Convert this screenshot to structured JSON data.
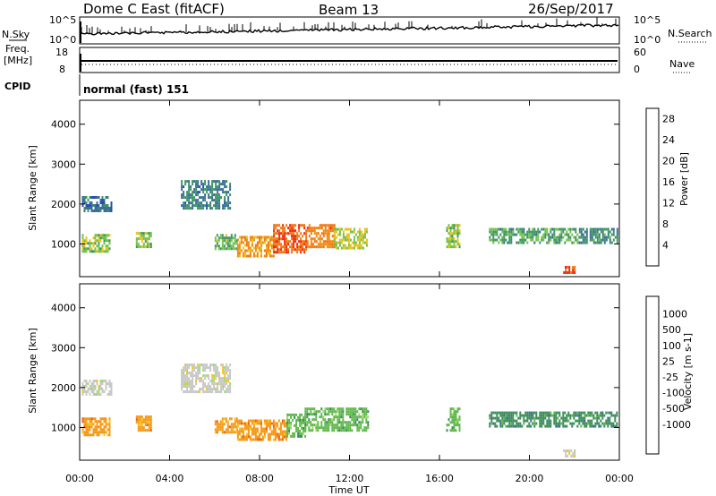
{
  "header": {
    "station": "Dome C East (fitACF)",
    "beam": "Beam 13",
    "date": "26/Sep/2017"
  },
  "params": {
    "nsky_label": "N.Sky",
    "nsearch_label": "N.Search",
    "freq_label_1": "Freq.",
    "freq_label_2": "[MHz]",
    "nave_label": "Nave",
    "cpid_label": "CPID",
    "nsky_ticks": [
      "10^5",
      "10^0"
    ],
    "nsearch_ticks": [
      "10^5",
      "10^0"
    ],
    "freq_ticks": [
      "18",
      "8"
    ],
    "nave_ticks": [
      "60",
      "0"
    ]
  },
  "cpid": {
    "mode": "normal (fast) 151"
  },
  "xaxis": {
    "label": "Time UT",
    "ticks": [
      "00:00",
      "04:00",
      "08:00",
      "12:00",
      "16:00",
      "20:00",
      "00:00"
    ]
  },
  "colors": {
    "power": [
      "#1b22e6",
      "#2b4eb3",
      "#3b6f96",
      "#3f9466",
      "#73c24a",
      "#e8c31c",
      "#f08c12",
      "#f07812",
      "#ef2b10",
      "#e00a0a"
    ],
    "velocity": [
      "#e60a0a",
      "#f06018",
      "#f59a18",
      "#f5c41a",
      "#c8c8c8",
      "#9fdc6c",
      "#62b84e",
      "#3d8c5a",
      "#3b64a8",
      "#1b2ed0"
    ],
    "trace": "#000000"
  },
  "chart_data": [
    {
      "type": "heatmap",
      "name": "power-panel",
      "ylabel": "Slant Range [km]",
      "xlim": [
        0,
        24
      ],
      "ylim": [
        180,
        4600
      ],
      "yticks": [
        "1000",
        "2000",
        "3000",
        "4000"
      ],
      "colorbar": {
        "label": "Power [dB]",
        "range": [
          0,
          30
        ],
        "ticks": [
          "4",
          "8",
          "12",
          "16",
          "20",
          "24",
          "28"
        ]
      },
      "regions": [
        {
          "t": [
            0.1,
            1.4
          ],
          "r": [
            1800,
            2200
          ],
          "v": 7
        },
        {
          "t": [
            0.1,
            1.3
          ],
          "r": [
            800,
            1250
          ],
          "v": 14
        },
        {
          "t": [
            2.5,
            3.2
          ],
          "r": [
            900,
            1300
          ],
          "v": 13
        },
        {
          "t": [
            4.5,
            6.7
          ],
          "r": [
            1900,
            2600
          ],
          "v": 8
        },
        {
          "t": [
            6.0,
            7.0
          ],
          "r": [
            900,
            1250
          ],
          "v": 12
        },
        {
          "t": [
            7.0,
            8.6
          ],
          "r": [
            700,
            1200
          ],
          "v": 20
        },
        {
          "t": [
            8.6,
            10.1
          ],
          "r": [
            800,
            1500
          ],
          "v": 25
        },
        {
          "t": [
            10.1,
            11.3
          ],
          "r": [
            900,
            1500
          ],
          "v": 22
        },
        {
          "t": [
            11.3,
            12.8
          ],
          "r": [
            900,
            1400
          ],
          "v": 15
        },
        {
          "t": [
            16.3,
            16.9
          ],
          "r": [
            900,
            1500
          ],
          "v": 14
        },
        {
          "t": [
            18.2,
            22.2
          ],
          "r": [
            1050,
            1400
          ],
          "v": 11
        },
        {
          "t": [
            22.2,
            23.9
          ],
          "r": [
            1050,
            1400
          ],
          "v": 9
        },
        {
          "t": [
            21.5,
            22.0
          ],
          "r": [
            250,
            450
          ],
          "v": 26
        }
      ]
    },
    {
      "type": "heatmap",
      "name": "velocity-panel",
      "ylabel": "Slant Range [km]",
      "xlim": [
        0,
        24
      ],
      "ylim": [
        180,
        4600
      ],
      "yticks": [
        "1000",
        "2000",
        "3000",
        "4000"
      ],
      "colorbar": {
        "label": "Velocity [m s-1]",
        "range": [
          -1000,
          1000
        ],
        "ticks": [
          "1000",
          "500",
          "100",
          "25",
          "-25",
          "-100",
          "-500",
          "-1000"
        ]
      },
      "regions": [
        {
          "t": [
            0.1,
            1.4
          ],
          "r": [
            1800,
            2200
          ],
          "v": 0
        },
        {
          "t": [
            0.1,
            1.3
          ],
          "r": [
            800,
            1250
          ],
          "v": -120
        },
        {
          "t": [
            2.5,
            3.2
          ],
          "r": [
            900,
            1300
          ],
          "v": -100
        },
        {
          "t": [
            4.5,
            6.7
          ],
          "r": [
            1900,
            2600
          ],
          "v": 0
        },
        {
          "t": [
            6.0,
            7.0
          ],
          "r": [
            900,
            1250
          ],
          "v": -150
        },
        {
          "t": [
            7.0,
            9.2
          ],
          "r": [
            700,
            1200
          ],
          "v": -150
        },
        {
          "t": [
            9.2,
            10.0
          ],
          "r": [
            800,
            1350
          ],
          "v": 60
        },
        {
          "t": [
            10.0,
            12.8
          ],
          "r": [
            900,
            1500
          ],
          "v": 80
        },
        {
          "t": [
            16.3,
            16.9
          ],
          "r": [
            900,
            1500
          ],
          "v": 60
        },
        {
          "t": [
            18.2,
            23.9
          ],
          "r": [
            1050,
            1400
          ],
          "v": 150
        },
        {
          "t": [
            21.5,
            22.0
          ],
          "r": [
            250,
            450
          ],
          "v": 0
        }
      ]
    }
  ]
}
